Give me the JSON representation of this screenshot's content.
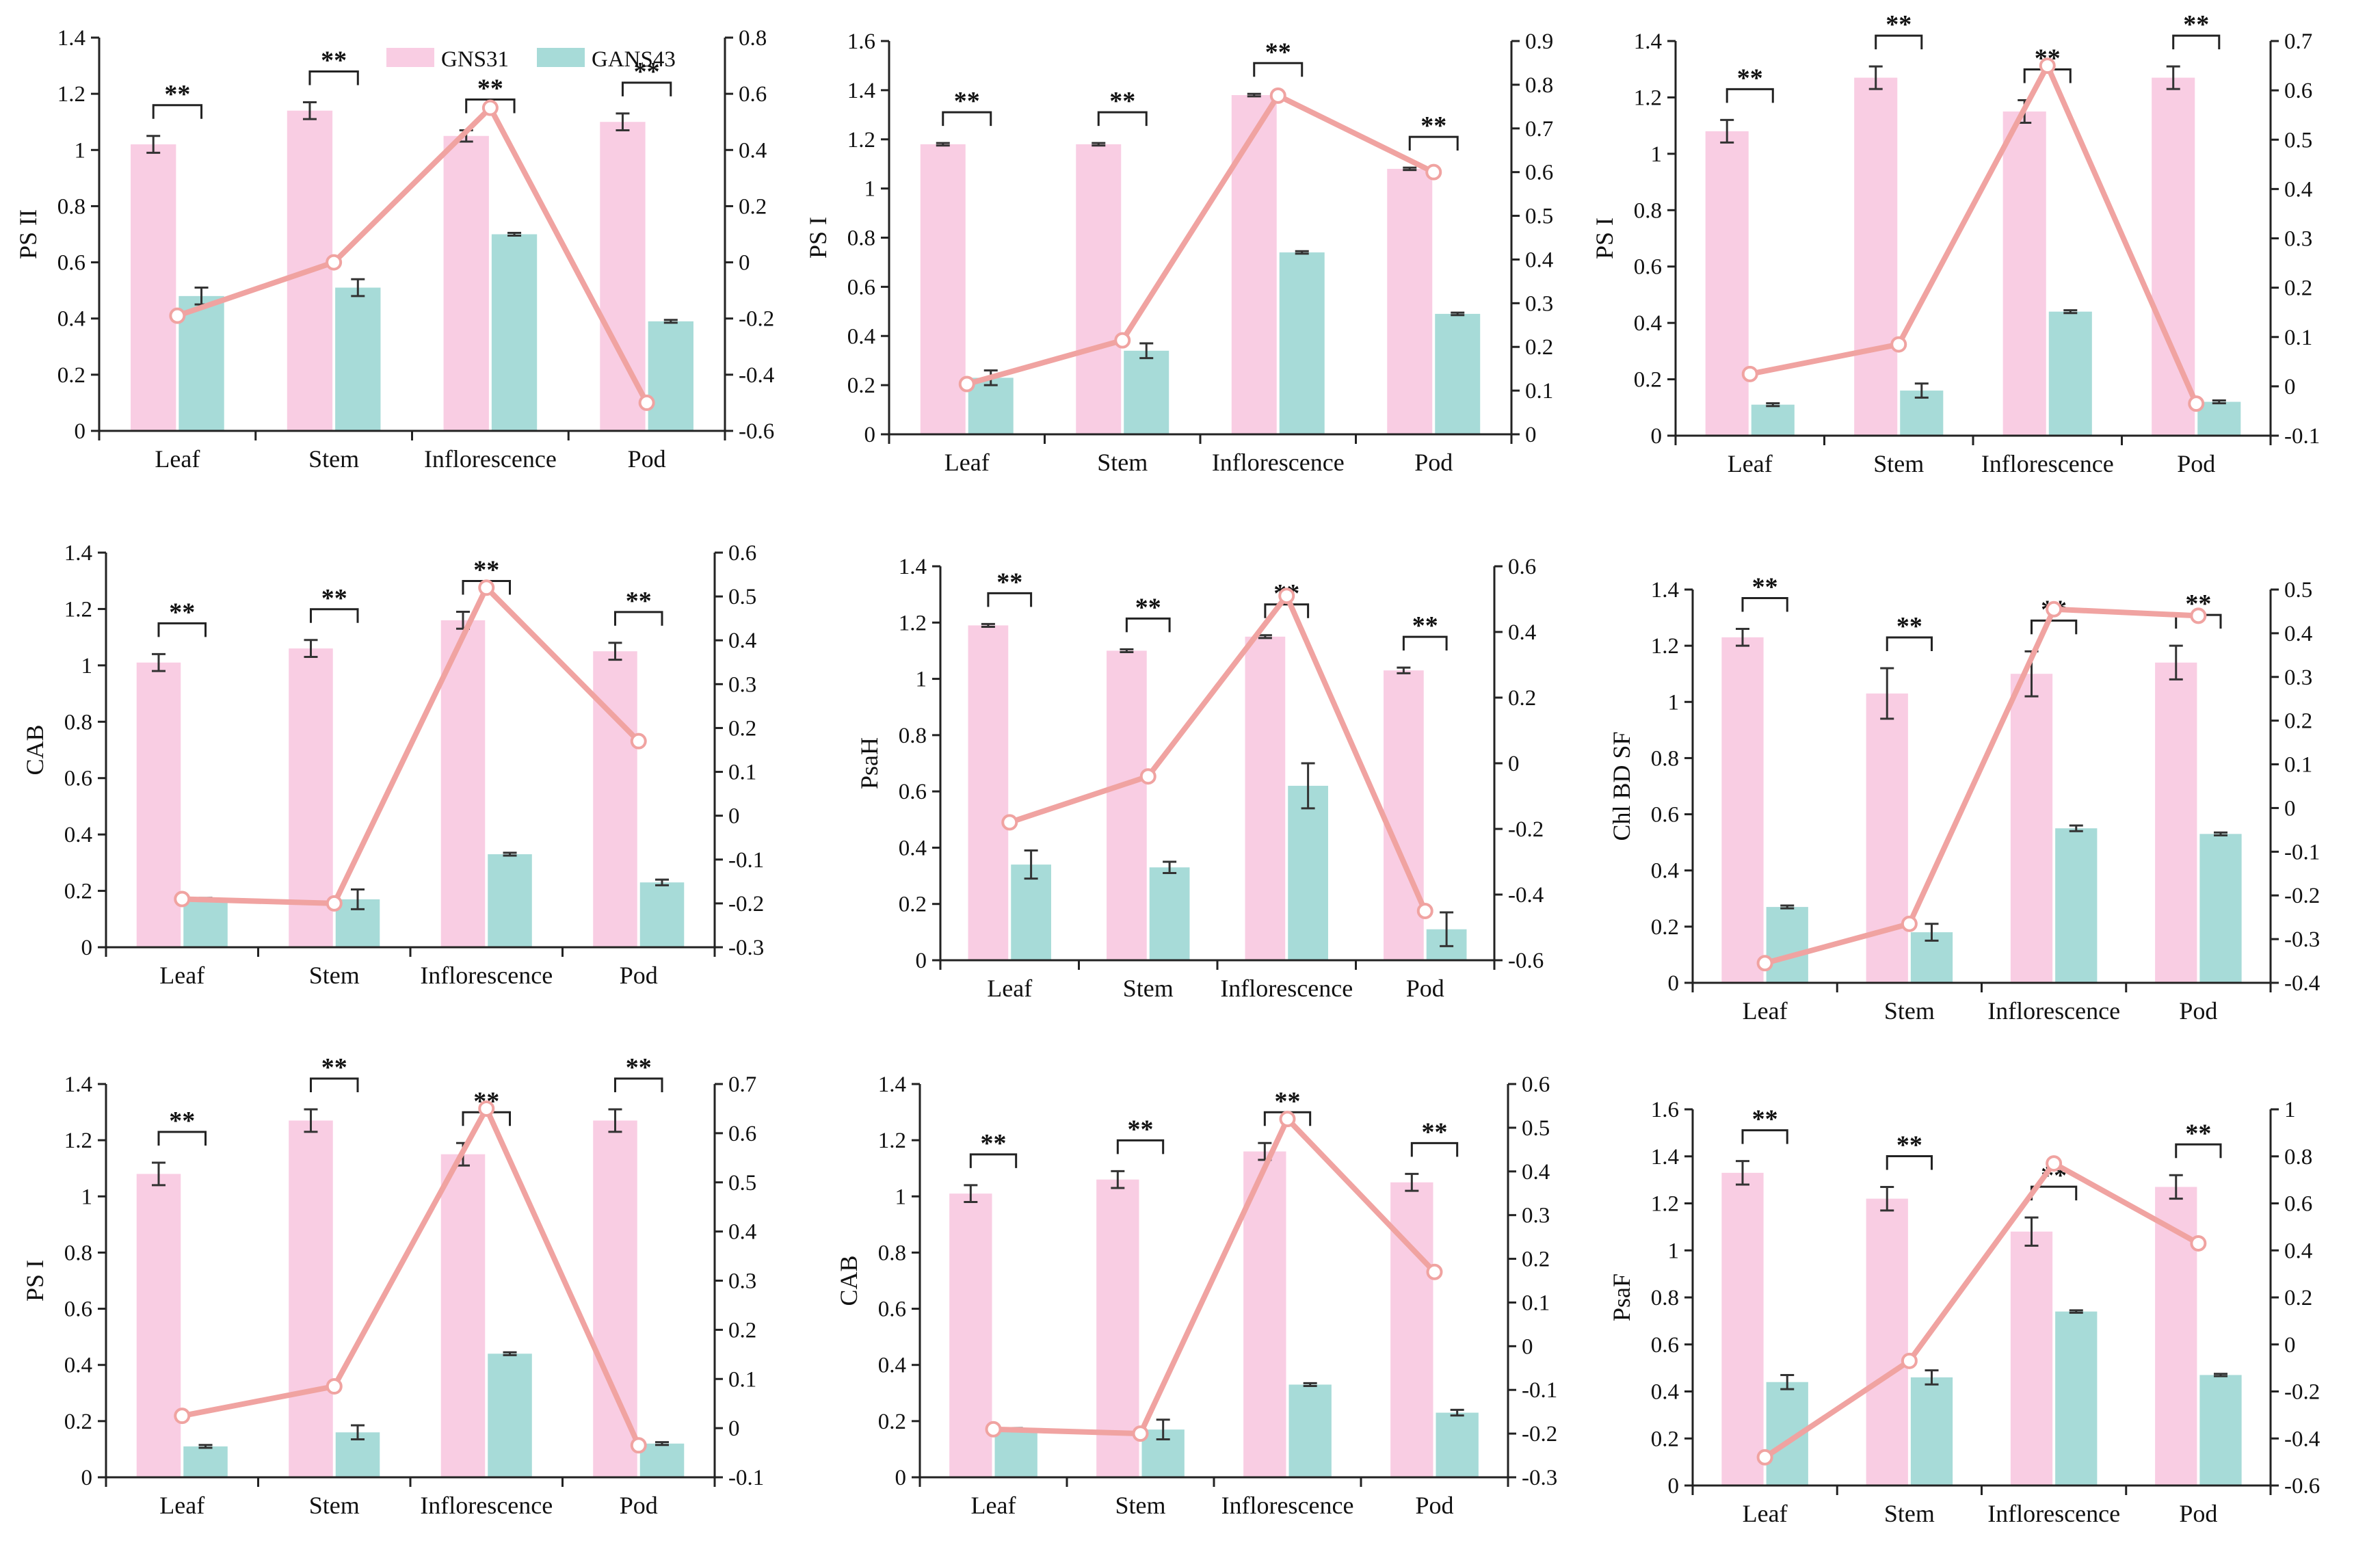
{
  "legend": {
    "items": [
      {
        "name": "GNS31",
        "color": "#f9cde3"
      },
      {
        "name": "GANS43",
        "color": "#a7dbd8"
      }
    ]
  },
  "colors": {
    "bar_a": "#f9cde3",
    "bar_b": "#a7dbd8",
    "line": "#f0a3a1",
    "axis": "#222222"
  },
  "chart_data": [
    {
      "type": "bar",
      "ylabel": "PS II",
      "categories": [
        "Leaf",
        "Stem",
        "Inflorescence",
        "Pod"
      ],
      "ylim": [
        0,
        1.4
      ],
      "yticks": [
        "0",
        "0.2",
        "0.4",
        "0.6",
        "0.8",
        "1",
        "1.2",
        "1.4"
      ],
      "y2lim": [
        -0.6,
        0.8
      ],
      "y2ticks": [
        "-0.6",
        "-0.4",
        "-0.2",
        "0",
        "0.2",
        "0.4",
        "0.6",
        "0.8"
      ],
      "series": [
        {
          "name": "GNS31",
          "values": [
            1.02,
            1.14,
            1.05,
            1.1
          ],
          "errors": [
            0.03,
            0.03,
            0.02,
            0.03
          ]
        },
        {
          "name": "GANS43",
          "values": [
            0.48,
            0.51,
            0.7,
            0.39
          ],
          "errors": [
            0.03,
            0.03,
            0.005,
            0.005
          ]
        }
      ],
      "line": {
        "values": [
          -0.19,
          0.0,
          0.55,
          -0.5
        ]
      },
      "significance": [
        "**",
        "**",
        "**",
        "**"
      ],
      "show_legend": true
    },
    {
      "type": "bar",
      "ylabel": "PS I",
      "categories": [
        "Leaf",
        "Stem",
        "Inflorescence",
        "Pod"
      ],
      "ylim": [
        0,
        1.6
      ],
      "yticks": [
        "0",
        "0.2",
        "0.4",
        "0.6",
        "0.8",
        "1",
        "1.2",
        "1.4",
        "1.6"
      ],
      "y2lim": [
        0,
        0.9
      ],
      "y2ticks": [
        "0",
        "0.1",
        "0.2",
        "0.3",
        "0.4",
        "0.5",
        "0.6",
        "0.7",
        "0.8",
        "0.9"
      ],
      "series": [
        {
          "name": "GNS31",
          "values": [
            1.18,
            1.18,
            1.38,
            1.08
          ],
          "errors": [
            0.005,
            0.005,
            0.005,
            0.005
          ]
        },
        {
          "name": "GANS43",
          "values": [
            0.23,
            0.34,
            0.74,
            0.49
          ],
          "errors": [
            0.03,
            0.03,
            0.005,
            0.005
          ]
        }
      ],
      "line": {
        "values": [
          0.115,
          0.215,
          0.775,
          0.6
        ]
      },
      "significance": [
        "**",
        "**",
        "**",
        "**"
      ],
      "show_legend": false
    },
    {
      "type": "bar",
      "ylabel": "PS I",
      "categories": [
        "Leaf",
        "Stem",
        "Inflorescence",
        "Pod"
      ],
      "ylim": [
        0,
        1.4
      ],
      "yticks": [
        "0",
        "0.2",
        "0.4",
        "0.6",
        "0.8",
        "1",
        "1.2",
        "1.4"
      ],
      "y2lim": [
        -0.1,
        0.7
      ],
      "y2ticks": [
        "-0.1",
        "0",
        "0.1",
        "0.2",
        "0.3",
        "0.4",
        "0.5",
        "0.6",
        "0.7"
      ],
      "series": [
        {
          "name": "GNS31",
          "values": [
            1.08,
            1.27,
            1.15,
            1.27
          ],
          "errors": [
            0.04,
            0.04,
            0.04,
            0.04
          ]
        },
        {
          "name": "GANS43",
          "values": [
            0.11,
            0.16,
            0.44,
            0.12
          ],
          "errors": [
            0.005,
            0.025,
            0.005,
            0.005
          ]
        }
      ],
      "line": {
        "values": [
          0.025,
          0.085,
          0.65,
          -0.035
        ]
      },
      "significance": [
        "**",
        "**",
        "**",
        "**"
      ],
      "show_legend": false
    },
    {
      "type": "bar",
      "ylabel": "CAB",
      "categories": [
        "Leaf",
        "Stem",
        "Inflorescence",
        "Pod"
      ],
      "ylim": [
        0,
        1.4
      ],
      "yticks": [
        "0",
        "0.2",
        "0.4",
        "0.6",
        "0.8",
        "1",
        "1.2",
        "1.4"
      ],
      "y2lim": [
        -0.3,
        0.6
      ],
      "y2ticks": [
        "-0.3",
        "-0.2",
        "-0.1",
        "0",
        "0.1",
        "0.2",
        "0.3",
        "0.4",
        "0.5",
        "0.6"
      ],
      "series": [
        {
          "name": "GNS31",
          "values": [
            1.01,
            1.06,
            1.16,
            1.05
          ],
          "errors": [
            0.03,
            0.03,
            0.03,
            0.03
          ]
        },
        {
          "name": "GANS43",
          "values": [
            0.17,
            0.17,
            0.33,
            0.23
          ],
          "errors": [
            0.005,
            0.035,
            0.005,
            0.01
          ]
        }
      ],
      "line": {
        "values": [
          -0.19,
          -0.2,
          0.52,
          0.17
        ]
      },
      "significance": [
        "**",
        "**",
        "**",
        "**"
      ],
      "show_legend": false
    },
    {
      "type": "bar",
      "ylabel": "PsaH",
      "categories": [
        "Leaf",
        "Stem",
        "Inflorescence",
        "Pod"
      ],
      "ylim": [
        0,
        1.4
      ],
      "yticks": [
        "0",
        "0.2",
        "0.4",
        "0.6",
        "0.8",
        "1",
        "1.2",
        "1.4"
      ],
      "y2lim": [
        -0.6,
        0.6
      ],
      "y2ticks": [
        "-0.6",
        "-0.4",
        "-0.2",
        "0",
        "0.2",
        "0.4",
        "0.6"
      ],
      "series": [
        {
          "name": "GNS31",
          "values": [
            1.19,
            1.1,
            1.15,
            1.03
          ],
          "errors": [
            0.005,
            0.005,
            0.005,
            0.01
          ]
        },
        {
          "name": "GANS43",
          "values": [
            0.34,
            0.33,
            0.62,
            0.11
          ],
          "errors": [
            0.05,
            0.02,
            0.08,
            0.06
          ]
        }
      ],
      "line": {
        "values": [
          -0.18,
          -0.04,
          0.51,
          -0.45
        ]
      },
      "significance": [
        "**",
        "**",
        "**",
        "**"
      ],
      "show_legend": false
    },
    {
      "type": "bar",
      "ylabel": "Chl BD SF",
      "categories": [
        "Leaf",
        "Stem",
        "Inflorescence",
        "Pod"
      ],
      "ylim": [
        0,
        1.4
      ],
      "yticks": [
        "0",
        "0.2",
        "0.4",
        "0.6",
        "0.8",
        "1",
        "1.2",
        "1.4"
      ],
      "y2lim": [
        -0.4,
        0.5
      ],
      "y2ticks": [
        "-0.4",
        "-0.3",
        "-0.2",
        "-0.1",
        "0",
        "0.1",
        "0.2",
        "0.3",
        "0.4",
        "0.5"
      ],
      "series": [
        {
          "name": "GNS31",
          "values": [
            1.23,
            1.03,
            1.1,
            1.14
          ],
          "errors": [
            0.03,
            0.09,
            0.08,
            0.06
          ]
        },
        {
          "name": "GANS43",
          "values": [
            0.27,
            0.18,
            0.55,
            0.53
          ],
          "errors": [
            0.005,
            0.03,
            0.01,
            0.005
          ]
        }
      ],
      "line": {
        "values": [
          -0.355,
          -0.265,
          0.455,
          0.44
        ]
      },
      "significance": [
        "**",
        "**",
        "**",
        "**"
      ],
      "show_legend": false
    },
    {
      "type": "bar",
      "ylabel": "PS I",
      "categories": [
        "Leaf",
        "Stem",
        "Inflorescence",
        "Pod"
      ],
      "ylim": [
        0,
        1.4
      ],
      "yticks": [
        "0",
        "0.2",
        "0.4",
        "0.6",
        "0.8",
        "1",
        "1.2",
        "1.4"
      ],
      "y2lim": [
        -0.1,
        0.7
      ],
      "y2ticks": [
        "-0.1",
        "0",
        "0.1",
        "0.2",
        "0.3",
        "0.4",
        "0.5",
        "0.6",
        "0.7"
      ],
      "series": [
        {
          "name": "GNS31",
          "values": [
            1.08,
            1.27,
            1.15,
            1.27
          ],
          "errors": [
            0.04,
            0.04,
            0.04,
            0.04
          ]
        },
        {
          "name": "GANS43",
          "values": [
            0.11,
            0.16,
            0.44,
            0.12
          ],
          "errors": [
            0.005,
            0.025,
            0.005,
            0.005
          ]
        }
      ],
      "line": {
        "values": [
          0.025,
          0.085,
          0.65,
          -0.035
        ]
      },
      "significance": [
        "**",
        "**",
        "**",
        "**"
      ],
      "show_legend": false
    },
    {
      "type": "bar",
      "ylabel": "CAB",
      "categories": [
        "Leaf",
        "Stem",
        "Inflorescence",
        "Pod"
      ],
      "ylim": [
        0,
        1.4
      ],
      "yticks": [
        "0",
        "0.2",
        "0.4",
        "0.6",
        "0.8",
        "1",
        "1.2",
        "1.4"
      ],
      "y2lim": [
        -0.3,
        0.6
      ],
      "y2ticks": [
        "-0.3",
        "-0.2",
        "-0.1",
        "0",
        "0.1",
        "0.2",
        "0.3",
        "0.4",
        "0.5",
        "0.6"
      ],
      "series": [
        {
          "name": "GNS31",
          "values": [
            1.01,
            1.06,
            1.16,
            1.05
          ],
          "errors": [
            0.03,
            0.03,
            0.03,
            0.03
          ]
        },
        {
          "name": "GANS43",
          "values": [
            0.17,
            0.17,
            0.33,
            0.23
          ],
          "errors": [
            0.005,
            0.035,
            0.005,
            0.01
          ]
        }
      ],
      "line": {
        "values": [
          -0.19,
          -0.2,
          0.52,
          0.17
        ]
      },
      "significance": [
        "**",
        "**",
        "**",
        "**"
      ],
      "show_legend": false
    },
    {
      "type": "bar",
      "ylabel": "PsaF",
      "categories": [
        "Leaf",
        "Stem",
        "Inflorescence",
        "Pod"
      ],
      "ylim": [
        0,
        1.6
      ],
      "yticks": [
        "0",
        "0.2",
        "0.4",
        "0.6",
        "0.8",
        "1",
        "1.2",
        "1.4",
        "1.6"
      ],
      "y2lim": [
        -0.6,
        1.0
      ],
      "y2ticks": [
        "-0.6",
        "-0.4",
        "-0.2",
        "0",
        "0.2",
        "0.4",
        "0.6",
        "0.8",
        "1"
      ],
      "series": [
        {
          "name": "GNS31",
          "values": [
            1.33,
            1.22,
            1.08,
            1.27
          ],
          "errors": [
            0.05,
            0.05,
            0.06,
            0.05
          ]
        },
        {
          "name": "GANS43",
          "values": [
            0.44,
            0.46,
            0.74,
            0.47
          ],
          "errors": [
            0.03,
            0.03,
            0.005,
            0.005
          ]
        }
      ],
      "line": {
        "values": [
          -0.48,
          -0.07,
          0.77,
          0.43
        ]
      },
      "significance": [
        "**",
        "**",
        "**",
        "**"
      ],
      "show_legend": false
    }
  ]
}
